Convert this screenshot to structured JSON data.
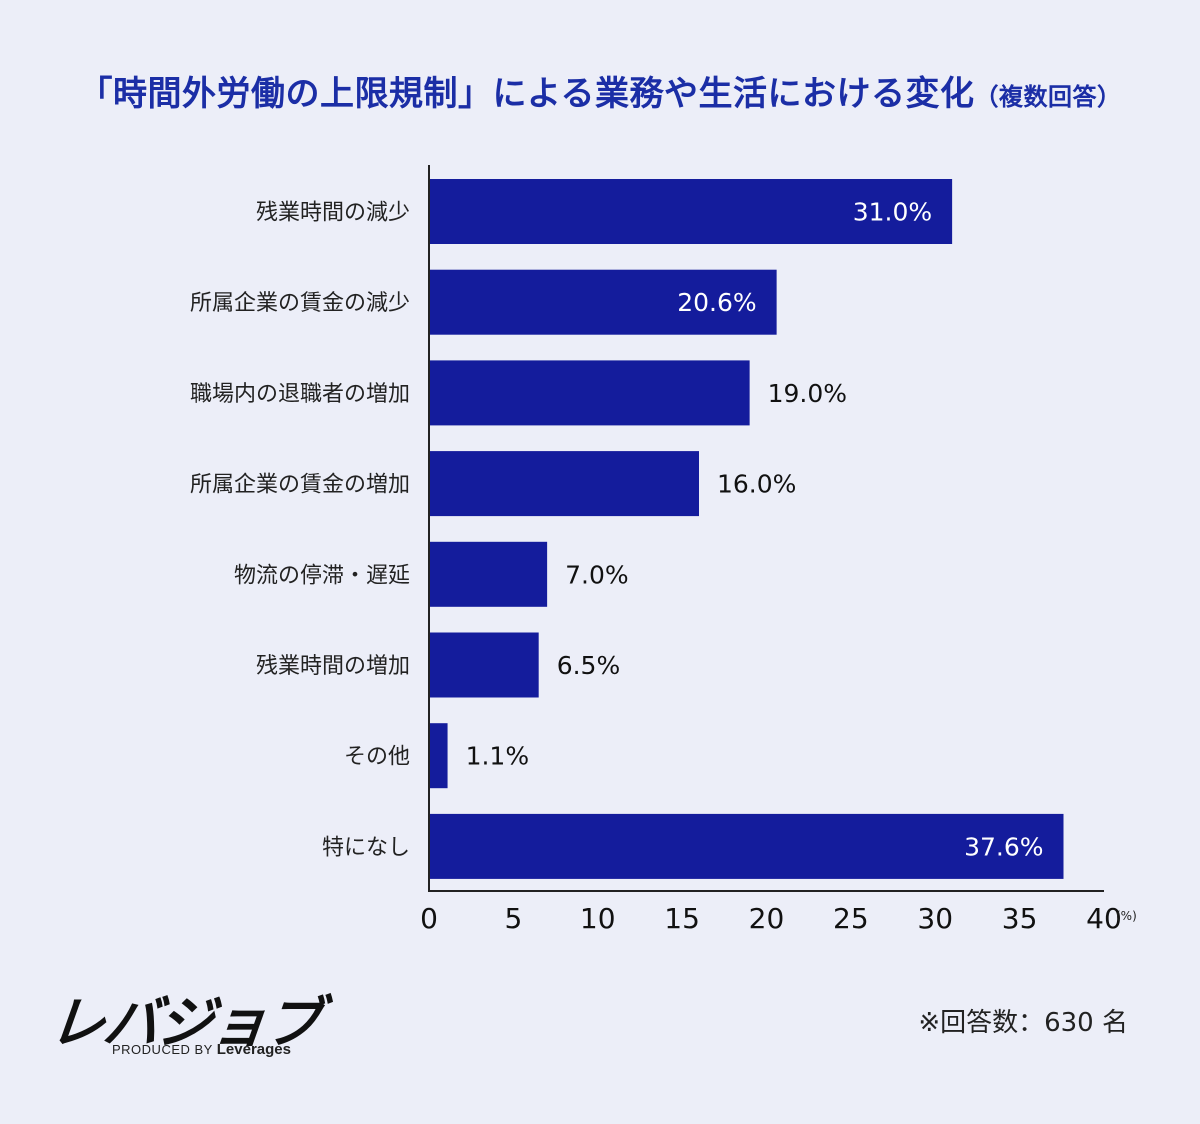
{
  "title": {
    "main": "「時間外労働の上限規制」による業務や生活における変化",
    "sub": "（複数回答）"
  },
  "chart_data": {
    "type": "bar",
    "orientation": "horizontal",
    "categories": [
      "残業時間の減少",
      "所属企業の賃金の減少",
      "職場内の退職者の増加",
      "所属企業の賃金の増加",
      "物流の停滞・遅延",
      "残業時間の増加",
      "その他",
      "特になし"
    ],
    "values": [
      31.0,
      20.6,
      19.0,
      16.0,
      7.0,
      6.5,
      1.1,
      37.6
    ],
    "value_labels": [
      "31.0%",
      "20.6%",
      "19.0%",
      "16.0%",
      "7.0%",
      "6.5%",
      "1.1%",
      "37.6%"
    ],
    "xlim": [
      0,
      40
    ],
    "xticks": [
      "0",
      "5",
      "10",
      "15",
      "20",
      "25",
      "30",
      "35",
      "40"
    ],
    "x_unit": "(%)",
    "bar_color": "#141c9c",
    "grid": false
  },
  "footer": {
    "brand": "レバジョブ",
    "produced_prefix": "PRODUCED BY",
    "produced_company": "Leverages",
    "note": "※回答数：630 名"
  }
}
